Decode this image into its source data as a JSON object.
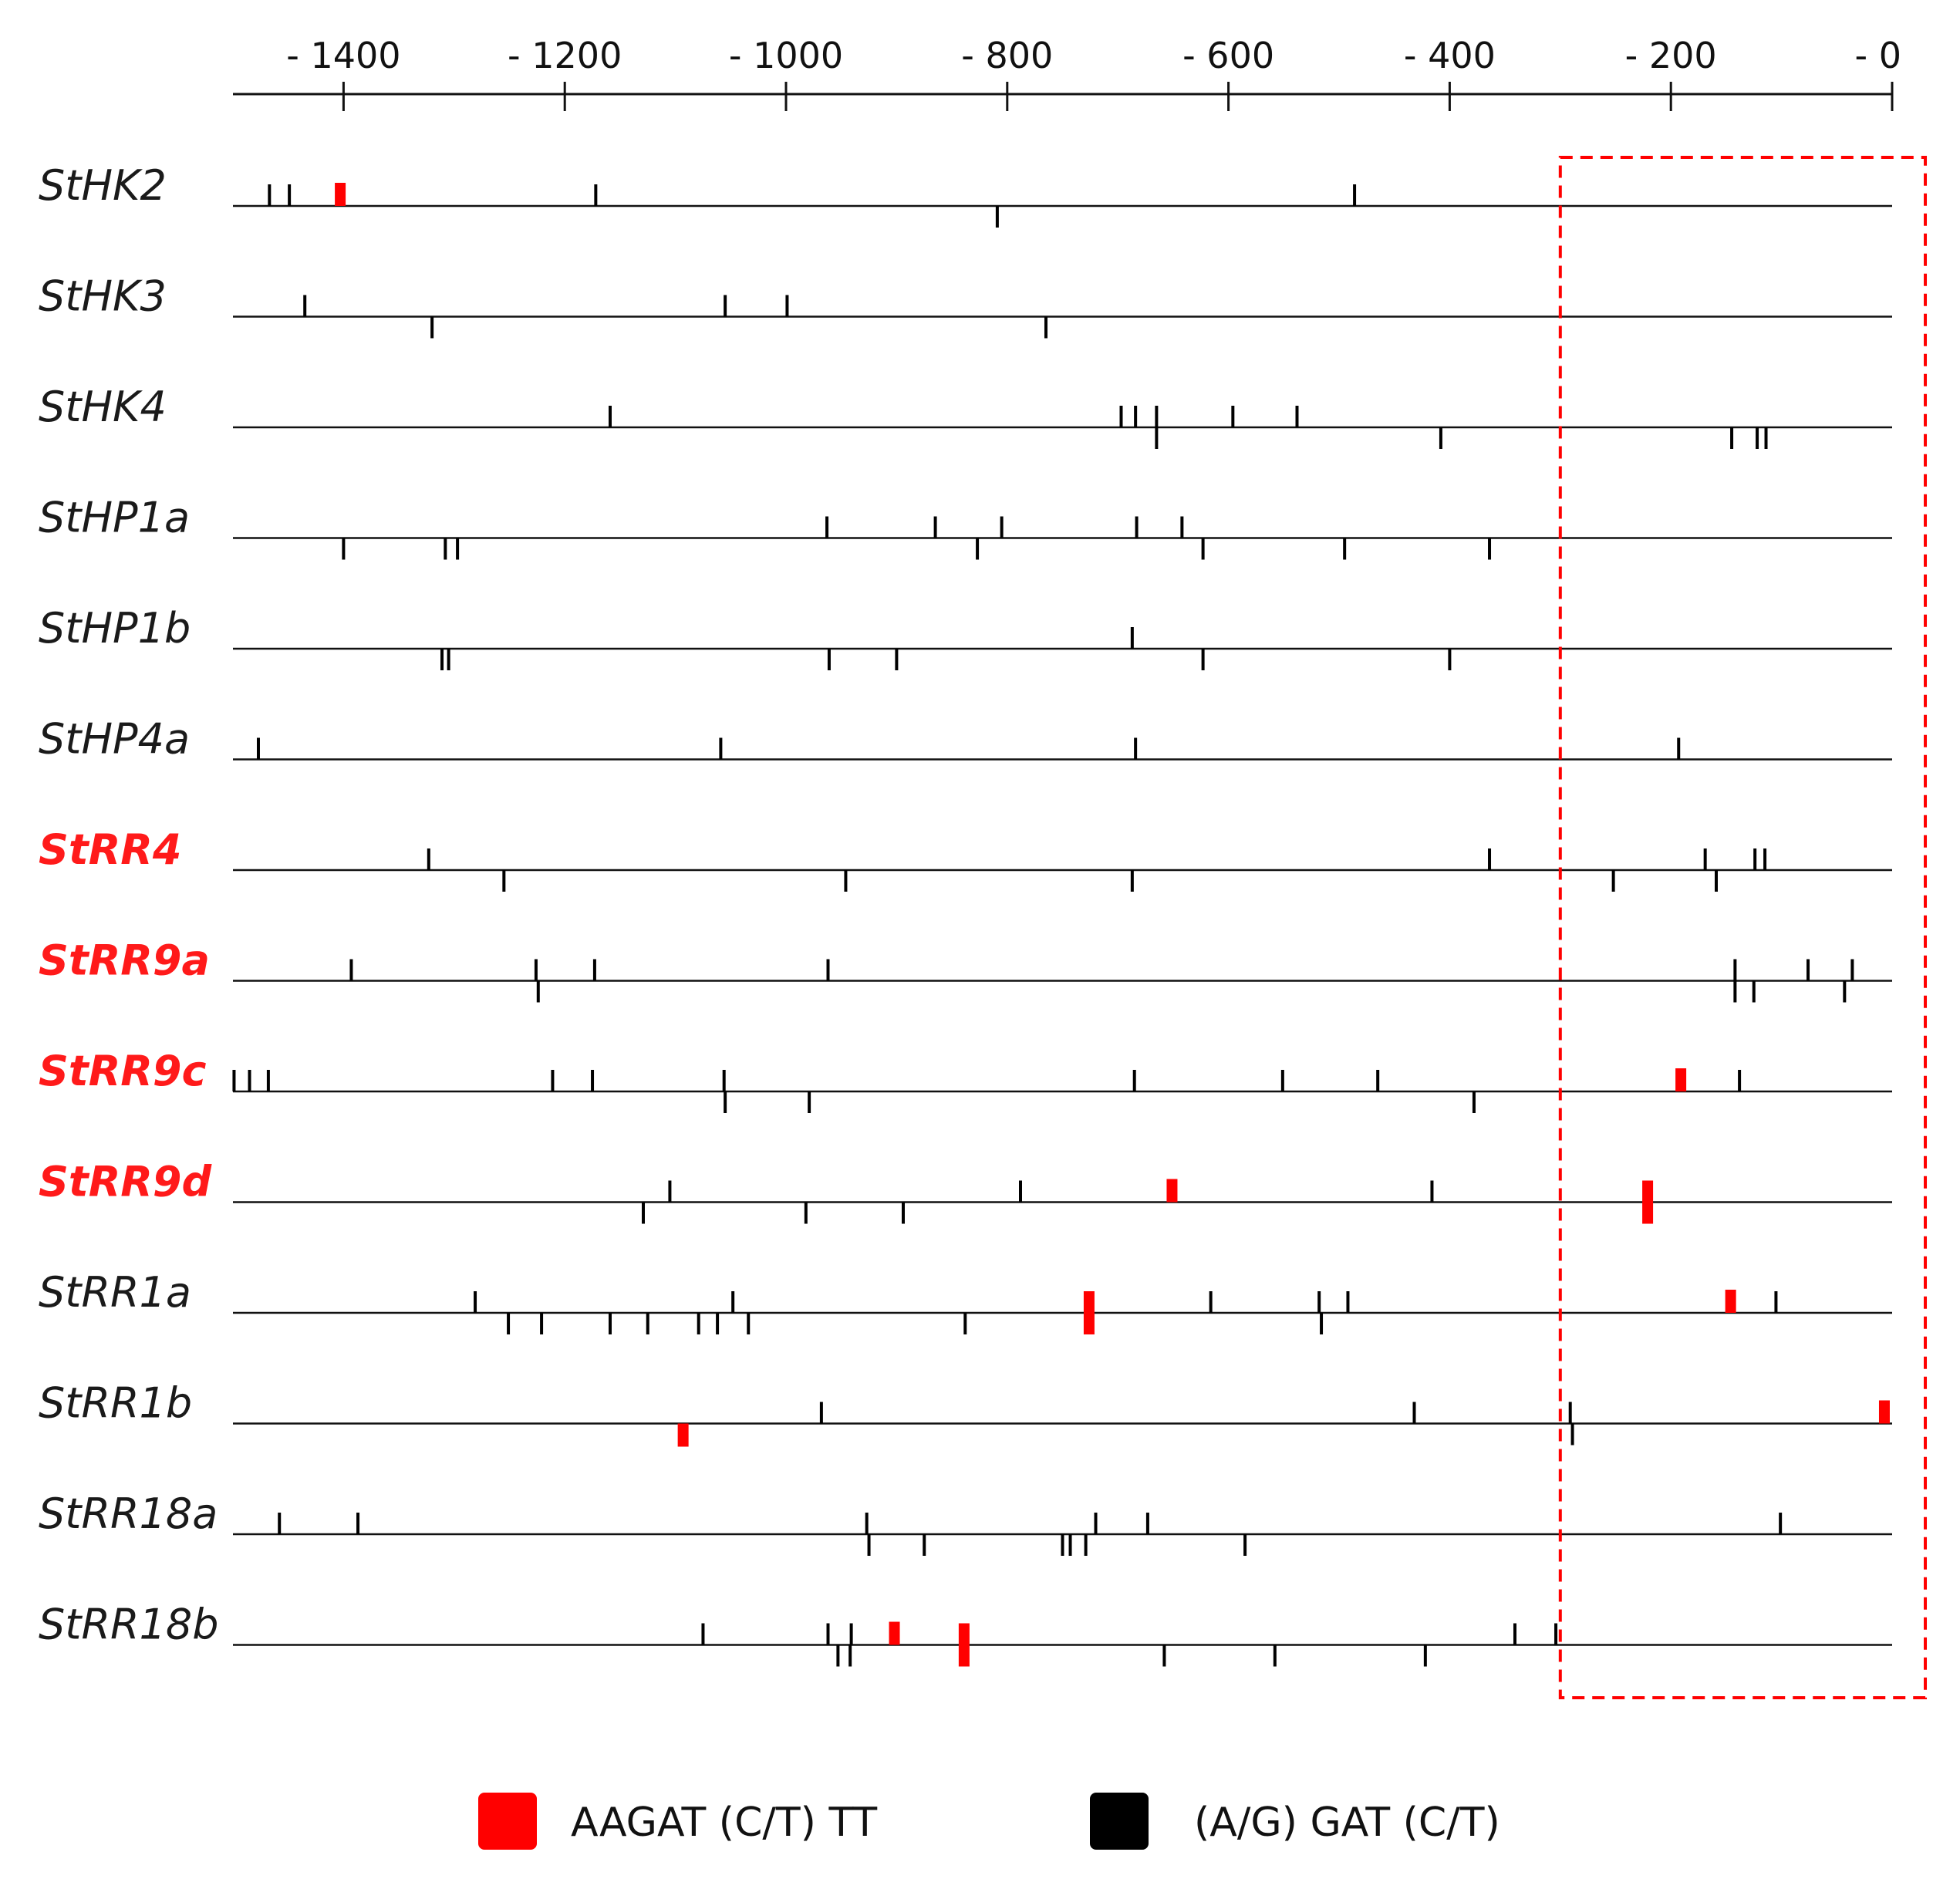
{
  "chart_data": {
    "type": "promoter-motif-map",
    "axis": {
      "ticks": [
        -1400,
        -1200,
        -1000,
        -800,
        -600,
        -400,
        -200,
        0
      ],
      "tick_labels": [
        "- 1400",
        "- 1200",
        "- 1000",
        "- 800",
        "- 600",
        "- 400",
        "- 200",
        "- 0"
      ],
      "range": [
        -1500,
        0
      ]
    },
    "highlight_region": {
      "from": -300,
      "to": 30,
      "style": "dashed",
      "color": "#ff0000"
    },
    "legend": [
      {
        "label": "AAGAT (C/T) TT",
        "color": "#ff0000",
        "motif": "red"
      },
      {
        "label": "(A/G) GAT (C/T)",
        "color": "#000000",
        "motif": "black"
      }
    ],
    "genes": [
      {
        "name": "StHK2",
        "highlight": false,
        "motifs": [
          {
            "pos": -1467,
            "strand": "+",
            "type": "black"
          },
          {
            "pos": -1449,
            "strand": "+",
            "type": "black"
          },
          {
            "pos": -1403,
            "strand": "+",
            "type": "red",
            "size": "small"
          },
          {
            "pos": -1172,
            "strand": "+",
            "type": "black"
          },
          {
            "pos": -809,
            "strand": "-",
            "type": "black"
          },
          {
            "pos": -486,
            "strand": "+",
            "type": "black"
          }
        ]
      },
      {
        "name": "StHK3",
        "highlight": false,
        "motifs": [
          {
            "pos": -1435,
            "strand": "+",
            "type": "black"
          },
          {
            "pos": -1320,
            "strand": "-",
            "type": "black"
          },
          {
            "pos": -1055,
            "strand": "+",
            "type": "black"
          },
          {
            "pos": -999,
            "strand": "+",
            "type": "black"
          },
          {
            "pos": -765,
            "strand": "-",
            "type": "black"
          }
        ]
      },
      {
        "name": "StHK4",
        "highlight": false,
        "motifs": [
          {
            "pos": -1159,
            "strand": "+",
            "type": "black"
          },
          {
            "pos": -697,
            "strand": "+",
            "type": "black"
          },
          {
            "pos": -684,
            "strand": "+",
            "type": "black"
          },
          {
            "pos": -665,
            "strand": "+",
            "type": "black"
          },
          {
            "pos": -665,
            "strand": "-",
            "type": "black"
          },
          {
            "pos": -596,
            "strand": "+",
            "type": "black"
          },
          {
            "pos": -538,
            "strand": "+",
            "type": "black"
          },
          {
            "pos": -408,
            "strand": "-",
            "type": "black"
          },
          {
            "pos": -145,
            "strand": "-",
            "type": "black"
          },
          {
            "pos": -122,
            "strand": "-",
            "type": "black"
          },
          {
            "pos": -114,
            "strand": "-",
            "type": "black"
          }
        ]
      },
      {
        "name": "StHP1a",
        "highlight": false,
        "motifs": [
          {
            "pos": -1400,
            "strand": "-",
            "type": "black"
          },
          {
            "pos": -1308,
            "strand": "-",
            "type": "black"
          },
          {
            "pos": -1297,
            "strand": "-",
            "type": "black"
          },
          {
            "pos": -963,
            "strand": "+",
            "type": "black"
          },
          {
            "pos": -865,
            "strand": "+",
            "type": "black"
          },
          {
            "pos": -827,
            "strand": "-",
            "type": "black"
          },
          {
            "pos": -805,
            "strand": "+",
            "type": "black"
          },
          {
            "pos": -683,
            "strand": "+",
            "type": "black"
          },
          {
            "pos": -642,
            "strand": "+",
            "type": "black"
          },
          {
            "pos": -623,
            "strand": "-",
            "type": "black"
          },
          {
            "pos": -495,
            "strand": "-",
            "type": "black"
          },
          {
            "pos": -364,
            "strand": "-",
            "type": "black"
          }
        ]
      },
      {
        "name": "StHP1b",
        "highlight": false,
        "motifs": [
          {
            "pos": -1311,
            "strand": "-",
            "type": "black"
          },
          {
            "pos": -1305,
            "strand": "-",
            "type": "black"
          },
          {
            "pos": -961,
            "strand": "-",
            "type": "black"
          },
          {
            "pos": -900,
            "strand": "-",
            "type": "black"
          },
          {
            "pos": -687,
            "strand": "+",
            "type": "black"
          },
          {
            "pos": -623,
            "strand": "-",
            "type": "black"
          },
          {
            "pos": -400,
            "strand": "-",
            "type": "black"
          }
        ]
      },
      {
        "name": "StHP4a",
        "highlight": false,
        "motifs": [
          {
            "pos": -1477,
            "strand": "+",
            "type": "black"
          },
          {
            "pos": -1059,
            "strand": "+",
            "type": "black"
          },
          {
            "pos": -684,
            "strand": "+",
            "type": "black"
          },
          {
            "pos": -193,
            "strand": "+",
            "type": "black"
          }
        ]
      },
      {
        "name": "StRR4",
        "highlight": true,
        "motifs": [
          {
            "pos": -1323,
            "strand": "+",
            "type": "black"
          },
          {
            "pos": -1255,
            "strand": "-",
            "type": "black"
          },
          {
            "pos": -946,
            "strand": "-",
            "type": "black"
          },
          {
            "pos": -687,
            "strand": "-",
            "type": "black"
          },
          {
            "pos": -364,
            "strand": "+",
            "type": "black"
          },
          {
            "pos": -252,
            "strand": "-",
            "type": "black"
          },
          {
            "pos": -169,
            "strand": "+",
            "type": "black"
          },
          {
            "pos": -159,
            "strand": "-",
            "type": "black"
          },
          {
            "pos": -124,
            "strand": "+",
            "type": "black"
          },
          {
            "pos": -115,
            "strand": "+",
            "type": "black"
          }
        ]
      },
      {
        "name": "StRR9a",
        "highlight": true,
        "motifs": [
          {
            "pos": -1393,
            "strand": "+",
            "type": "black"
          },
          {
            "pos": -1226,
            "strand": "+",
            "type": "black"
          },
          {
            "pos": -1224,
            "strand": "-",
            "type": "black"
          },
          {
            "pos": -1173,
            "strand": "+",
            "type": "black"
          },
          {
            "pos": -962,
            "strand": "+",
            "type": "black"
          },
          {
            "pos": -142,
            "strand": "+",
            "type": "black"
          },
          {
            "pos": -142,
            "strand": "-",
            "type": "black"
          },
          {
            "pos": -125,
            "strand": "-",
            "type": "black"
          },
          {
            "pos": -76,
            "strand": "+",
            "type": "black"
          },
          {
            "pos": -43,
            "strand": "-",
            "type": "black"
          },
          {
            "pos": -36,
            "strand": "+",
            "type": "black"
          }
        ]
      },
      {
        "name": "StRR9c",
        "highlight": true,
        "motifs": [
          {
            "pos": -1499,
            "strand": "+",
            "type": "black"
          },
          {
            "pos": -1485,
            "strand": "+",
            "type": "black"
          },
          {
            "pos": -1468,
            "strand": "+",
            "type": "black"
          },
          {
            "pos": -1211,
            "strand": "+",
            "type": "black"
          },
          {
            "pos": -1175,
            "strand": "+",
            "type": "black"
          },
          {
            "pos": -1056,
            "strand": "+",
            "type": "black"
          },
          {
            "pos": -1055,
            "strand": "-",
            "type": "black"
          },
          {
            "pos": -979,
            "strand": "-",
            "type": "black"
          },
          {
            "pos": -685,
            "strand": "+",
            "type": "black"
          },
          {
            "pos": -551,
            "strand": "+",
            "type": "black"
          },
          {
            "pos": -465,
            "strand": "+",
            "type": "black"
          },
          {
            "pos": -378,
            "strand": "-",
            "type": "black"
          },
          {
            "pos": -191,
            "strand": "+",
            "type": "red",
            "size": "small"
          },
          {
            "pos": -138,
            "strand": "+",
            "type": "black"
          }
        ]
      },
      {
        "name": "StRR9d",
        "highlight": true,
        "motifs": [
          {
            "pos": -1129,
            "strand": "-",
            "type": "black"
          },
          {
            "pos": -1105,
            "strand": "+",
            "type": "black"
          },
          {
            "pos": -982,
            "strand": "-",
            "type": "black"
          },
          {
            "pos": -894,
            "strand": "-",
            "type": "black"
          },
          {
            "pos": -788,
            "strand": "+",
            "type": "black"
          },
          {
            "pos": -651,
            "strand": "+",
            "type": "red",
            "size": "small"
          },
          {
            "pos": -416,
            "strand": "+",
            "type": "black"
          },
          {
            "pos": -221,
            "strand": "both",
            "type": "red",
            "size": "large"
          }
        ]
      },
      {
        "name": "StRR1a",
        "highlight": false,
        "motifs": [
          {
            "pos": -1281,
            "strand": "+",
            "type": "black"
          },
          {
            "pos": -1251,
            "strand": "-",
            "type": "black"
          },
          {
            "pos": -1221,
            "strand": "-",
            "type": "black"
          },
          {
            "pos": -1159,
            "strand": "-",
            "type": "black"
          },
          {
            "pos": -1125,
            "strand": "-",
            "type": "black"
          },
          {
            "pos": -1079,
            "strand": "-",
            "type": "black"
          },
          {
            "pos": -1062,
            "strand": "-",
            "type": "black"
          },
          {
            "pos": -1048,
            "strand": "+",
            "type": "black"
          },
          {
            "pos": -1034,
            "strand": "-",
            "type": "black"
          },
          {
            "pos": -838,
            "strand": "-",
            "type": "black"
          },
          {
            "pos": -726,
            "strand": "both",
            "type": "red",
            "size": "large"
          },
          {
            "pos": -616,
            "strand": "+",
            "type": "black"
          },
          {
            "pos": -518,
            "strand": "+",
            "type": "black"
          },
          {
            "pos": -516,
            "strand": "-",
            "type": "black"
          },
          {
            "pos": -492,
            "strand": "+",
            "type": "black"
          },
          {
            "pos": -146,
            "strand": "+",
            "type": "red",
            "size": "small"
          },
          {
            "pos": -105,
            "strand": "+",
            "type": "black"
          }
        ]
      },
      {
        "name": "StRR1b",
        "highlight": false,
        "motifs": [
          {
            "pos": -1093,
            "strand": "-",
            "type": "red",
            "size": "small"
          },
          {
            "pos": -968,
            "strand": "+",
            "type": "black"
          },
          {
            "pos": -432,
            "strand": "+",
            "type": "black"
          },
          {
            "pos": -291,
            "strand": "+",
            "type": "black"
          },
          {
            "pos": -289,
            "strand": "-",
            "type": "black"
          },
          {
            "pos": -7,
            "strand": "+",
            "type": "red",
            "size": "small"
          }
        ]
      },
      {
        "name": "StRR18a",
        "highlight": false,
        "motifs": [
          {
            "pos": -1458,
            "strand": "+",
            "type": "black"
          },
          {
            "pos": -1387,
            "strand": "+",
            "type": "black"
          },
          {
            "pos": -927,
            "strand": "+",
            "type": "black"
          },
          {
            "pos": -925,
            "strand": "-",
            "type": "black"
          },
          {
            "pos": -875,
            "strand": "-",
            "type": "black"
          },
          {
            "pos": -750,
            "strand": "-",
            "type": "black"
          },
          {
            "pos": -743,
            "strand": "-",
            "type": "black"
          },
          {
            "pos": -729,
            "strand": "-",
            "type": "black"
          },
          {
            "pos": -720,
            "strand": "+",
            "type": "black"
          },
          {
            "pos": -673,
            "strand": "+",
            "type": "black"
          },
          {
            "pos": -585,
            "strand": "-",
            "type": "black"
          },
          {
            "pos": -101,
            "strand": "+",
            "type": "black"
          }
        ]
      },
      {
        "name": "StRR18b",
        "highlight": false,
        "motifs": [
          {
            "pos": -1075,
            "strand": "+",
            "type": "black"
          },
          {
            "pos": -962,
            "strand": "+",
            "type": "black"
          },
          {
            "pos": -953,
            "strand": "-",
            "type": "black"
          },
          {
            "pos": -942,
            "strand": "-",
            "type": "black"
          },
          {
            "pos": -941,
            "strand": "+",
            "type": "black"
          },
          {
            "pos": -902,
            "strand": "+",
            "type": "red",
            "size": "small"
          },
          {
            "pos": -839,
            "strand": "both",
            "type": "red",
            "size": "large"
          },
          {
            "pos": -658,
            "strand": "-",
            "type": "black"
          },
          {
            "pos": -558,
            "strand": "-",
            "type": "black"
          },
          {
            "pos": -422,
            "strand": "-",
            "type": "black"
          },
          {
            "pos": -341,
            "strand": "+",
            "type": "black"
          },
          {
            "pos": -304,
            "strand": "+",
            "type": "black"
          }
        ]
      }
    ]
  }
}
